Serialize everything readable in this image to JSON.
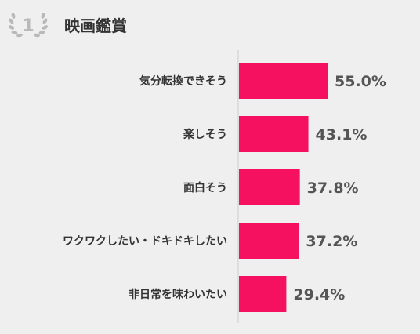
{
  "rank": {
    "number": "1"
  },
  "title": "映画鑑賞",
  "chart_data": {
    "type": "bar",
    "orientation": "horizontal",
    "categories": [
      "気分転換できそう",
      "楽しそう",
      "面白そう",
      "ワクワクしたい・ドキドキしたい",
      "非日常を味わいたい"
    ],
    "values": [
      55.0,
      43.1,
      37.8,
      37.2,
      29.4
    ],
    "value_labels": [
      "55.0%",
      "43.1%",
      "37.8%",
      "37.2%",
      "29.4%"
    ],
    "value_unit": "%",
    "xlim": [
      0,
      55.0
    ],
    "title": "映画鑑賞",
    "xlabel": "",
    "ylabel": "",
    "grid": false,
    "legend": "none",
    "colors": {
      "bar": "#f5115f",
      "axis": "#cccccc",
      "category_text": "#333333",
      "value_text": "#555555",
      "title_text": "#333333",
      "badge": "#b9b9b9",
      "background": "#efefef"
    }
  }
}
